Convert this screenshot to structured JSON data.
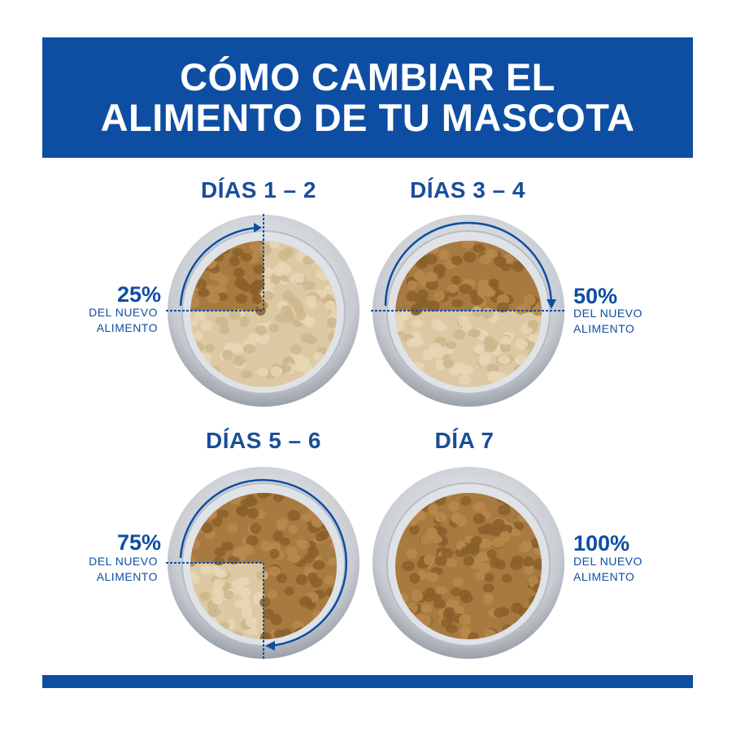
{
  "colors": {
    "brand_blue": "#0d4ea3",
    "title_blue": "#1a4d9a",
    "light_food": "#dcc9a4",
    "dark_food": "#a77a3f",
    "bowl_metal": "#c8ccd2"
  },
  "header": {
    "line1": "CÓMO CAMBIAR EL",
    "line2": "ALIMENTO DE TU MASCOTA"
  },
  "stages": [
    {
      "title": "DÍAS 1 – 2",
      "percent": "25%",
      "caption_line1": "DEL NUEVO",
      "caption_line2": "ALIMENTO",
      "new_food_fraction": 0.25,
      "label_side": "left"
    },
    {
      "title": "DÍAS 3 – 4",
      "percent": "50%",
      "caption_line1": "DEL NUEVO",
      "caption_line2": "ALIMENTO",
      "new_food_fraction": 0.5,
      "label_side": "right"
    },
    {
      "title": "DÍAS 5 – 6",
      "percent": "75%",
      "caption_line1": "DEL NUEVO",
      "caption_line2": "ALIMENTO",
      "new_food_fraction": 0.75,
      "label_side": "left"
    },
    {
      "title": "DÍA 7",
      "percent": "100%",
      "caption_line1": "DEL NUEVO",
      "caption_line2": "ALIMENTO",
      "new_food_fraction": 1.0,
      "label_side": "right"
    }
  ]
}
